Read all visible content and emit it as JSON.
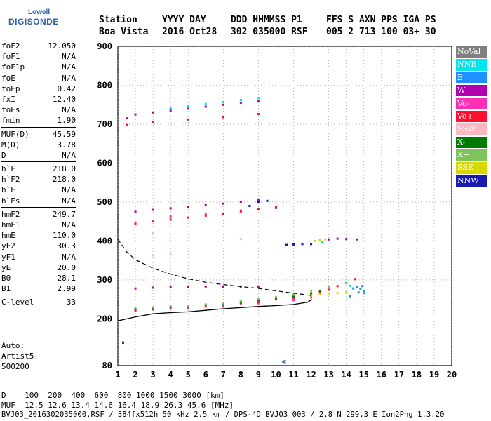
{
  "logo": {
    "brand": "Lowell",
    "product": "DIGISONDE"
  },
  "header": {
    "labels": [
      "Station",
      "YYYY DAY",
      "DDD HHMMSS P1",
      "FFS S AXN PPS IGA PS"
    ],
    "values": [
      "Boa Vista",
      "2016 Oct28",
      "302 035000 RSF",
      "005 2 713 100 03+ 30"
    ]
  },
  "params": [
    [
      {
        "label": "foF2",
        "value": "12.050"
      },
      {
        "label": "foF1",
        "value": "N/A"
      },
      {
        "label": "foF1p",
        "value": "N/A"
      },
      {
        "label": "foE",
        "value": "N/A"
      },
      {
        "label": "foEp",
        "value": "0.42"
      },
      {
        "label": "fxI",
        "value": "12.40"
      },
      {
        "label": "foEs",
        "value": "N/A"
      },
      {
        "label": "fmin",
        "value": "1.90"
      }
    ],
    [
      {
        "label": "MUF(D)",
        "value": "45.59"
      },
      {
        "label": "M(D)",
        "value": "3.78"
      },
      {
        "label": "D",
        "value": "N/A"
      }
    ],
    [
      {
        "label": "h`F",
        "value": "218.0"
      },
      {
        "label": "h`F2",
        "value": "218.0"
      },
      {
        "label": "h`E",
        "value": "N/A"
      },
      {
        "label": "h`Es",
        "value": "N/A"
      }
    ],
    [
      {
        "label": "hmF2",
        "value": "249.7"
      },
      {
        "label": "hmF1",
        "value": "N/A"
      },
      {
        "label": "hmE",
        "value": "110.0"
      },
      {
        "label": "yF2",
        "value": "30.3"
      },
      {
        "label": "yF1",
        "value": "N/A"
      },
      {
        "label": "yE",
        "value": "20.0"
      },
      {
        "label": "B0",
        "value": "28.1"
      },
      {
        "label": "B1",
        "value": "2.99"
      }
    ],
    [
      {
        "label": "C-level",
        "value": "33"
      }
    ]
  ],
  "auto": {
    "line1": "Auto:",
    "line2": "Artist5",
    "line3": "500200"
  },
  "legend": [
    {
      "label": "NoVal",
      "color": "#7f7f7f"
    },
    {
      "label": "NNE",
      "color": "#00e5ee"
    },
    {
      "label": "E",
      "color": "#1e90ff"
    },
    {
      "label": "W",
      "color": "#b000b0"
    },
    {
      "label": "Vo-",
      "color": "#ff2fb4"
    },
    {
      "label": "Vo+",
      "color": "#ff1030"
    },
    {
      "label": "SSW",
      "color": "#ffb6c1"
    },
    {
      "label": "X-",
      "color": "#007a00"
    },
    {
      "label": "X+",
      "color": "#7dc45a"
    },
    {
      "label": "SSE",
      "color": "#d8d800"
    },
    {
      "label": "NNW",
      "color": "#1a1ab0"
    }
  ],
  "footer": {
    "d_row": "D    100  200  400  600  800 1000 1500 3000 [km]",
    "muf_row": "MUF  12.5 12.6 13.4 14.6 16.4 18.9 26.3 45.6 [MHz]",
    "file_row": "BVJ03_2016302035000.RSF / 384fx512h 50 kHz 2.5 km / DPS-4D BVJ03 003 / 2.8 N 299.3 E Ion2Png 1.3.20"
  },
  "chart_data": {
    "type": "scatter",
    "xlim": [
      1,
      20
    ],
    "ylim": [
      80,
      900
    ],
    "x_ticks": [
      1,
      2,
      3,
      4,
      5,
      6,
      7,
      8,
      9,
      10,
      11,
      12,
      13,
      14,
      15,
      16,
      17,
      18,
      19,
      20
    ],
    "y_ticks": [
      80,
      200,
      300,
      400,
      500,
      600,
      700,
      800,
      900
    ],
    "grid": "dotted",
    "legend_position": "right",
    "series": [
      {
        "name": "NoVal",
        "points": [
          [
            10.5,
            87
          ],
          [
            10.5,
            92
          ]
        ]
      },
      {
        "name": "NNE",
        "points": [
          [
            4,
            742
          ],
          [
            5,
            748
          ],
          [
            6,
            752
          ],
          [
            7,
            757
          ],
          [
            8,
            762
          ],
          [
            9,
            767
          ],
          [
            12.6,
            398
          ],
          [
            14.2,
            285
          ]
        ]
      },
      {
        "name": "E",
        "points": [
          [
            14.4,
            278
          ],
          [
            14.6,
            282
          ],
          [
            14.8,
            276
          ],
          [
            15,
            272
          ],
          [
            15,
            266
          ],
          [
            14.7,
            268
          ],
          [
            14.9,
            284
          ],
          [
            14.2,
            258
          ],
          [
            10.4,
            90
          ]
        ]
      },
      {
        "name": "W",
        "points": [
          [
            1.5,
            715
          ],
          [
            2,
            725
          ],
          [
            3,
            730
          ],
          [
            4,
            735
          ],
          [
            5,
            740
          ],
          [
            6,
            745
          ],
          [
            7,
            750
          ],
          [
            8,
            755
          ],
          [
            9,
            760
          ],
          [
            2,
            278
          ],
          [
            3,
            280
          ],
          [
            4,
            281
          ],
          [
            5,
            282
          ],
          [
            6,
            283
          ],
          [
            7,
            282
          ],
          [
            8,
            283
          ],
          [
            9,
            282
          ],
          [
            13,
            404
          ],
          [
            13.5,
            406
          ],
          [
            14,
            405
          ],
          [
            14.6,
            404
          ],
          [
            1.3,
            139
          ],
          [
            2,
            475
          ],
          [
            3,
            480
          ],
          [
            4,
            484
          ],
          [
            5,
            488
          ],
          [
            6,
            492
          ],
          [
            7,
            496
          ],
          [
            8,
            500
          ],
          [
            9,
            505
          ],
          [
            10,
            485
          ]
        ]
      },
      {
        "name": "Vo-",
        "points": [
          [
            2,
            220
          ],
          [
            3,
            224
          ],
          [
            5,
            228
          ],
          [
            7,
            233
          ],
          [
            9,
            240
          ],
          [
            11,
            248
          ],
          [
            12,
            255
          ],
          [
            4,
            463
          ],
          [
            6,
            470
          ],
          [
            8,
            478
          ]
        ]
      },
      {
        "name": "Vo+",
        "points": [
          [
            2,
            222
          ],
          [
            3,
            226
          ],
          [
            4,
            228
          ],
          [
            5,
            230
          ],
          [
            6,
            233
          ],
          [
            7,
            236
          ],
          [
            8,
            240
          ],
          [
            9,
            244
          ],
          [
            10,
            250
          ],
          [
            11,
            254
          ],
          [
            12,
            262
          ],
          [
            12.5,
            268
          ],
          [
            13,
            275
          ],
          [
            13.5,
            284
          ],
          [
            14,
            292
          ],
          [
            14.5,
            302
          ],
          [
            2,
            445
          ],
          [
            3,
            450
          ],
          [
            4,
            455
          ],
          [
            5,
            460
          ],
          [
            6,
            465
          ],
          [
            7,
            470
          ],
          [
            8,
            476
          ],
          [
            9,
            482
          ],
          [
            10,
            487
          ],
          [
            1.5,
            698
          ],
          [
            3,
            705
          ],
          [
            5,
            712
          ],
          [
            7,
            718
          ],
          [
            9,
            726
          ]
        ]
      },
      {
        "name": "SSW",
        "points": [
          [
            3,
            363
          ],
          [
            4,
            368
          ],
          [
            8,
            405
          ],
          [
            3,
            420
          ]
        ]
      },
      {
        "name": "X-",
        "points": [
          [
            2,
            225
          ],
          [
            3,
            228
          ],
          [
            4,
            231
          ],
          [
            5,
            233
          ],
          [
            6,
            236
          ],
          [
            7,
            239
          ],
          [
            8,
            243
          ],
          [
            9,
            249
          ],
          [
            10,
            253
          ],
          [
            11,
            258
          ],
          [
            12,
            264
          ],
          [
            12.5,
            272
          ],
          [
            13,
            281
          ]
        ]
      },
      {
        "name": "X+",
        "points": [
          [
            2,
            227
          ],
          [
            3,
            230
          ],
          [
            4,
            232
          ],
          [
            5,
            234
          ],
          [
            6,
            237
          ],
          [
            7,
            240
          ],
          [
            8,
            245
          ],
          [
            9,
            251
          ],
          [
            10,
            256
          ],
          [
            11,
            262
          ],
          [
            12,
            270
          ],
          [
            13,
            282
          ],
          [
            14,
            292
          ]
        ]
      },
      {
        "name": "SSE",
        "points": [
          [
            12,
            260
          ],
          [
            12.5,
            263
          ],
          [
            13,
            265
          ],
          [
            13.5,
            266
          ],
          [
            14,
            268
          ],
          [
            12.2,
            400
          ],
          [
            12.5,
            402
          ],
          [
            12.8,
            404
          ]
        ]
      },
      {
        "name": "NNW",
        "points": [
          [
            1.3,
            139
          ],
          [
            10.6,
            390
          ],
          [
            11,
            391
          ],
          [
            11.5,
            392
          ],
          [
            12,
            392
          ],
          [
            8.5,
            490
          ],
          [
            9,
            500
          ],
          [
            9.5,
            503
          ]
        ]
      }
    ],
    "profile_solid": [
      [
        1,
        195
      ],
      [
        2,
        205
      ],
      [
        3,
        213
      ],
      [
        4,
        216
      ],
      [
        5,
        218
      ],
      [
        6,
        222
      ],
      [
        7,
        226
      ],
      [
        8,
        229
      ],
      [
        9,
        232
      ],
      [
        10,
        234
      ],
      [
        11,
        237
      ],
      [
        11.8,
        243
      ],
      [
        12.05,
        249.7
      ]
    ],
    "profile_dashed": [
      [
        1,
        405
      ],
      [
        1.5,
        372
      ],
      [
        2,
        352
      ],
      [
        3,
        330
      ],
      [
        4,
        315
      ],
      [
        5,
        303
      ],
      [
        6,
        294
      ],
      [
        7,
        288
      ],
      [
        8,
        283
      ],
      [
        9,
        278
      ],
      [
        10,
        272
      ],
      [
        11,
        266
      ],
      [
        12,
        260
      ]
    ]
  }
}
